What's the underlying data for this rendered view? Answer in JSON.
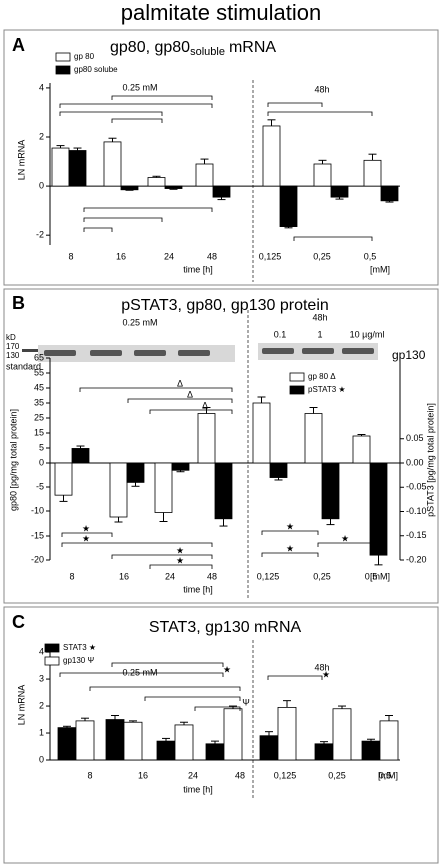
{
  "figure_title": "palmitate stimulation",
  "chart_data": [
    {
      "type": "bar",
      "label": "A",
      "title": "gp80, gp80",
      "title_subscript": "soluble",
      "title_suffix": "mRNA",
      "ylabel": "LN mRNA",
      "xlabel": "time [h]",
      "x2label": "[mM]",
      "group_labels": [
        "0.25 mM",
        "48h"
      ],
      "categories": [
        "8",
        "16",
        "24",
        "48",
        "0,125",
        "0,25",
        "0,5"
      ],
      "series": [
        {
          "name": "gp 80",
          "color": "#ffffff",
          "values": [
            1.55,
            1.8,
            0.35,
            0.9,
            2.45,
            0.9,
            1.05
          ],
          "errors": [
            0.1,
            0.15,
            0.05,
            0.2,
            0.25,
            0.15,
            0.25
          ]
        },
        {
          "name": "gp80 solube",
          "color": "#000000",
          "values": [
            1.45,
            -0.15,
            -0.1,
            -0.45,
            -1.65,
            -0.45,
            -0.6
          ],
          "errors": [
            0.1,
            0.02,
            0.03,
            0.1,
            0.05,
            0.08,
            0.05
          ]
        }
      ],
      "ylim": [
        -2.4,
        4.2
      ],
      "yticks": [
        -2,
        0,
        2,
        4
      ],
      "annotations": []
    },
    {
      "type": "bar",
      "label": "B",
      "title": "pSTAT3, gp80, gp130 protein",
      "ylabel": "gp80 [pg/mg total protein]",
      "y2label": "pSTAT3 [pg/mg total protein]",
      "xlabel": "time [h]",
      "x2label": "[mM]",
      "group_labels": [
        "0.25 mM",
        "48h"
      ],
      "concentrations": [
        "0.1",
        "1",
        "10 µg/ml"
      ],
      "blot_texts": [
        "kD",
        "170",
        "130",
        "standard"
      ],
      "blot_protein": "gp130",
      "categories": [
        "8",
        "16",
        "24",
        "48",
        "0,125",
        "0,25",
        "0,5"
      ],
      "series": [
        {
          "name": "gp 80 Δ",
          "color": "#ffffff",
          "values": [
            -6.7,
            -11.2,
            -10.3,
            28,
            35,
            28,
            13
          ],
          "errors": [
            1.3,
            1,
            1.8,
            4,
            4,
            4,
            1
          ]
        },
        {
          "name": "pSTAT3 ★",
          "color": "#000000",
          "axis": "y2",
          "values": [
            0.03,
            -0.04,
            -0.015,
            -0.115,
            -0.03,
            -0.115,
            -0.19
          ],
          "errors": [
            0.005,
            0.008,
            0.003,
            0.015,
            0.005,
            0.012,
            0.02
          ]
        }
      ],
      "ylim": [
        -20,
        65
      ],
      "yticks": [
        65,
        55,
        45,
        35,
        25,
        15,
        5,
        0,
        -5,
        -10,
        -15,
        -20
      ],
      "y2lim": [
        -0.2,
        0.05
      ],
      "y2ticks": [
        0.05,
        {
          "value": 0,
          "label": "0.00"
        },
        -0.05,
        {
          "value": -0.1,
          "label": "-0.10"
        },
        -0.15,
        {
          "value": -0.2,
          "label": "-0.20"
        }
      ],
      "annotations": [
        "Δ",
        "Δ",
        "Δ",
        "★",
        "★",
        "★",
        "★",
        "★",
        "★",
        "★"
      ]
    },
    {
      "type": "bar",
      "label": "C",
      "title": "STAT3, gp130 mRNA",
      "ylabel": "LN mRNA",
      "xlabel": "time [h]",
      "x2label": "[mM]",
      "group_labels": [
        "0.25 mM",
        "48h"
      ],
      "categories": [
        "8",
        "16",
        "24",
        "48",
        "0,125",
        "0,25",
        "0,5"
      ],
      "series": [
        {
          "name": "STAT3 ★",
          "color": "#000000",
          "values": [
            1.2,
            1.5,
            0.7,
            0.6,
            0.9,
            0.6,
            0.7
          ],
          "errors": [
            0.05,
            0.15,
            0.1,
            0.1,
            0.15,
            0.08,
            0.07
          ]
        },
        {
          "name": "gp130 Ψ",
          "color": "#ffffff",
          "values": [
            1.45,
            1.4,
            1.3,
            1.9,
            1.95,
            1.9,
            1.45
          ],
          "errors": [
            0.1,
            0.05,
            0.1,
            0.1,
            0.25,
            0.1,
            0.2
          ]
        }
      ],
      "ylim": [
        0,
        4.3
      ],
      "yticks": [
        0,
        1,
        2,
        3,
        4
      ],
      "annotations": [
        "★",
        "Ψ",
        "★"
      ]
    }
  ]
}
